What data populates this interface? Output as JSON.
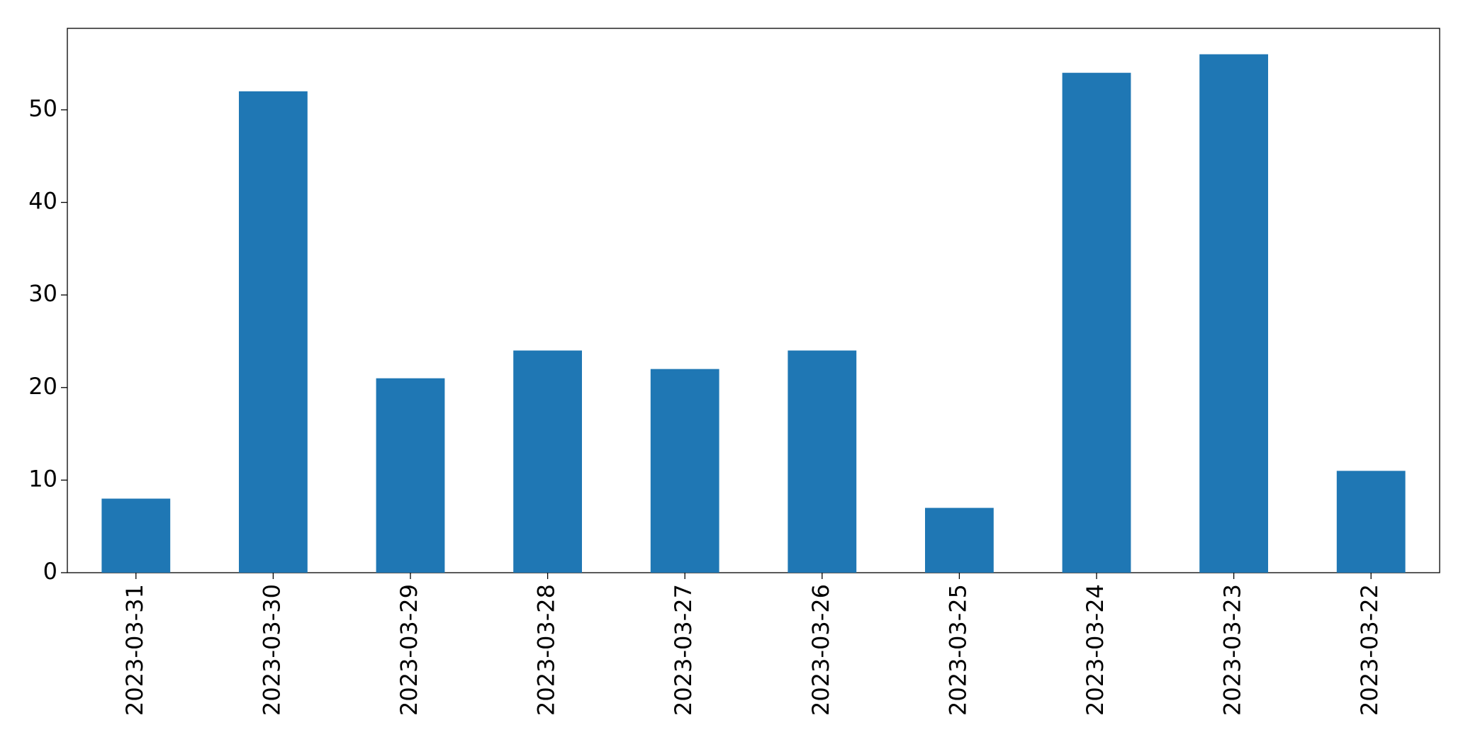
{
  "chart_data": {
    "type": "bar",
    "categories": [
      "2023-03-31",
      "2023-03-30",
      "2023-03-29",
      "2023-03-28",
      "2023-03-27",
      "2023-03-26",
      "2023-03-25",
      "2023-03-24",
      "2023-03-23",
      "2023-03-22"
    ],
    "values": [
      8,
      52,
      21,
      24,
      22,
      24,
      7,
      54,
      56,
      11
    ],
    "color": "#1f77b4",
    "ylim": [
      0,
      58.8
    ],
    "yticks": [
      0,
      10,
      20,
      30,
      40,
      50
    ],
    "grid": false
  }
}
